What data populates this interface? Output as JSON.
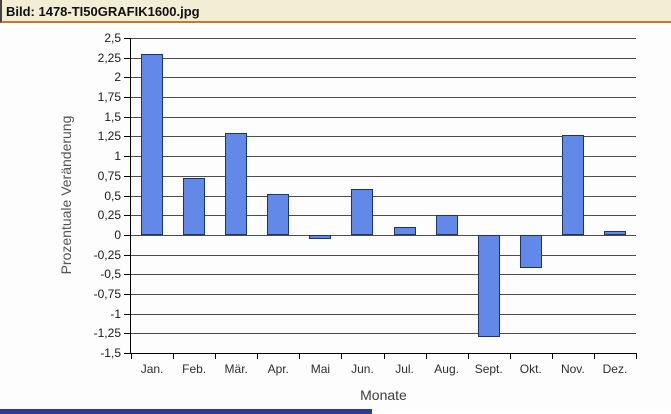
{
  "titlebar": {
    "title": "Bild: 1478-TI50GRAFIK1600.jpg",
    "bg_color": "#f2edd4",
    "rule_color": "#c9782b"
  },
  "chart_data": {
    "type": "bar",
    "title": "",
    "categories": [
      "Jan.",
      "Feb.",
      "Mär.",
      "Apr.",
      "Mai",
      "Jun.",
      "Jul.",
      "Aug.",
      "Sept.",
      "Okt.",
      "Nov.",
      "Dez."
    ],
    "values": [
      2.3,
      0.72,
      1.3,
      0.52,
      -0.05,
      0.58,
      0.1,
      0.25,
      -1.3,
      -0.42,
      1.27,
      0.05
    ],
    "xlabel": "Monate",
    "ylabel": "Prozentuale Veränderung",
    "ylim": [
      -1.5,
      2.5
    ],
    "ytick_step": 0.25,
    "ytick_labels_top_to_bottom": [
      "2,5",
      "2,25",
      "2",
      "1,75",
      "1,5",
      "1,25",
      "1",
      "0,75",
      "0,5",
      "0,25",
      "0",
      "-0,25",
      "-0,5",
      "-0,75",
      "-1",
      "-1,25",
      "-1,5"
    ],
    "grid": true,
    "legend": "none",
    "bar_color": "#6289e8",
    "bar_border_color": "#1c3567",
    "gridline_color": "#4d4d4d"
  },
  "bottom_fragment": {
    "color": "#2c3b8e"
  }
}
